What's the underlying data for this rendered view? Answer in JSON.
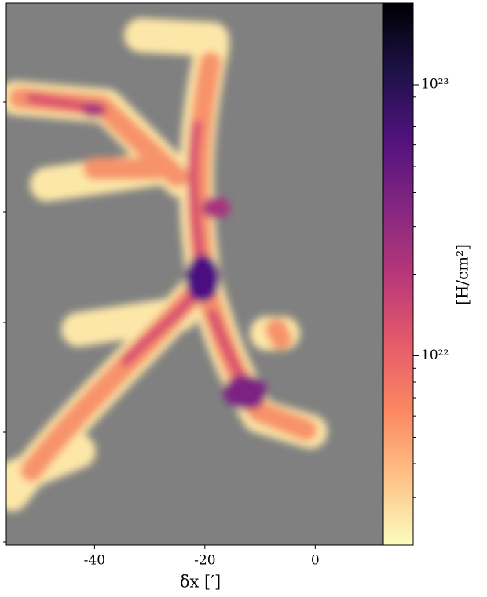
{
  "chart_data": {
    "type": "heatmap",
    "x_label": "δx [′]",
    "xlim": [
      -56,
      12.2
    ],
    "xticks": [
      -40,
      -20,
      0
    ],
    "background": "#808080",
    "colorbar": {
      "label": "[H/cm²]",
      "scale": "log",
      "lim": [
        2e+21,
        2e+23
      ],
      "ticks": [
        {
          "value": 1e+22,
          "label": "10²²"
        },
        {
          "value": 1e+23,
          "label": "10²³"
        }
      ],
      "minor_ticks": [
        3e+21,
        4e+21,
        5e+21,
        6e+21,
        7e+21,
        8e+21,
        9e+21,
        2e+22,
        3e+22,
        4e+22,
        5e+22,
        6e+22,
        7e+22,
        8e+22,
        9e+22
      ],
      "colormap": [
        "#fcfdbf",
        "#fec287",
        "#fb8761",
        "#e45a6b",
        "#b73779",
        "#832681",
        "#51127c",
        "#1d1147",
        "#000004"
      ]
    }
  }
}
